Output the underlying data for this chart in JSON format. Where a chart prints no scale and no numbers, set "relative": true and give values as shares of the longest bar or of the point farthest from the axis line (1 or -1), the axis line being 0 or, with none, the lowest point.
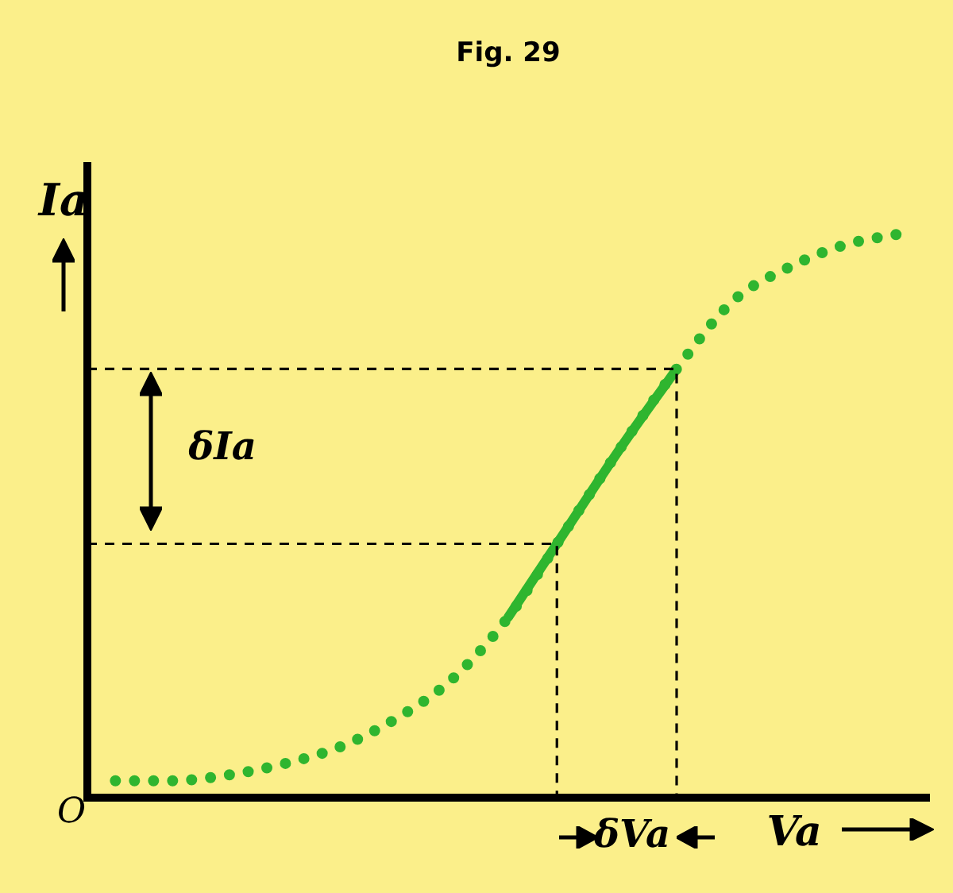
{
  "chart_data": {
    "type": "line",
    "relative": true,
    "title": "Fig. 29",
    "xlabel": "Va",
    "ylabel": "Ia",
    "categories": [
      null,
      null,
      null,
      null,
      null,
      null,
      null,
      null,
      null,
      null,
      null,
      null,
      null,
      null,
      null
    ],
    "series": [
      {
        "color": "#2fb52f",
        "line_style": "dotted",
        "values": [
          0.03,
          0.03,
          0.04,
          0.06,
          0.09,
          0.14,
          0.21,
          0.32,
          0.47,
          0.62,
          0.76,
          0.88,
          0.94,
          0.98,
          1
        ]
      },
      {
        "color": "#2fb52f",
        "line_style": "solid",
        "values": [
          null,
          null,
          null,
          null,
          null,
          null,
          null,
          0.32,
          0.47,
          0.62,
          0.76,
          null,
          null,
          null,
          null
        ]
      }
    ],
    "ref_lines": [
      {
        "axis": "y",
        "value": 0.76,
        "line_style": "dashed",
        "color": "#000000"
      },
      {
        "axis": "y",
        "value": 0.45,
        "line_style": "dashed",
        "color": "#000000"
      }
    ],
    "annotations": [
      "O",
      "δIa",
      "δVa"
    ],
    "marker": "none",
    "grid": false,
    "legend": false
  }
}
